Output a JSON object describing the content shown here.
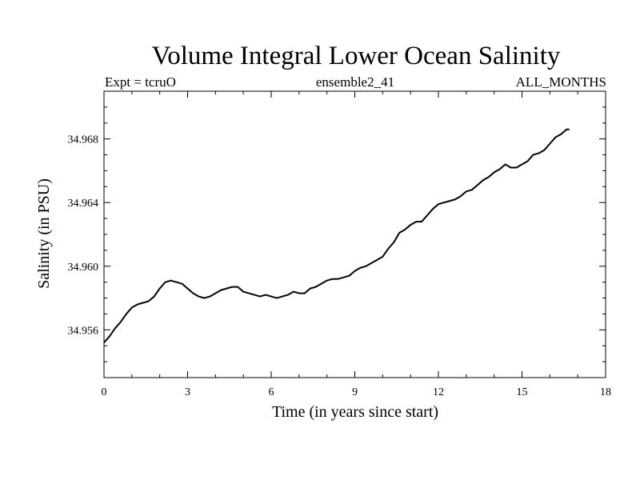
{
  "chart_data": {
    "type": "line",
    "title": "Volume Integral Lower Ocean Salinity",
    "subtitle_left": "Expt = tcruO",
    "subtitle_center": "ensemble2_41",
    "subtitle_right": "ALL_MONTHS",
    "xlabel": "Time (in years since start)",
    "ylabel": "Salinity (in PSU)",
    "xlim": [
      0,
      18
    ],
    "ylim": [
      34.953,
      34.971
    ],
    "xticks": [
      0,
      3,
      6,
      9,
      12,
      15,
      18
    ],
    "yticks": [
      34.956,
      34.96,
      34.964,
      34.968
    ],
    "ytick_labels": [
      "34.956",
      "34.960",
      "34.964",
      "34.968"
    ],
    "grid": false,
    "series": [
      {
        "color": "#000000",
        "x": [
          0,
          0.2,
          0.4,
          0.6,
          0.8,
          1.0,
          1.2,
          1.4,
          1.6,
          1.8,
          2.0,
          2.2,
          2.4,
          2.6,
          2.8,
          3.0,
          3.2,
          3.4,
          3.6,
          3.8,
          4.0,
          4.2,
          4.4,
          4.6,
          4.8,
          5.0,
          5.2,
          5.4,
          5.6,
          5.8,
          6.0,
          6.2,
          6.4,
          6.6,
          6.8,
          7.0,
          7.2,
          7.4,
          7.6,
          7.8,
          8.0,
          8.2,
          8.4,
          8.6,
          8.8,
          9.0,
          9.2,
          9.4,
          9.6,
          9.8,
          10.0,
          10.2,
          10.4,
          10.6,
          10.8,
          11.0,
          11.2,
          11.4,
          11.6,
          11.8,
          12.0,
          12.2,
          12.4,
          12.6,
          12.8,
          13.0,
          13.2,
          13.4,
          13.6,
          13.8,
          14.0,
          14.2,
          14.4,
          14.6,
          14.8,
          15.0,
          15.2,
          15.4,
          15.6,
          15.8,
          16.0,
          16.2,
          16.4,
          16.6,
          16.7
        ],
        "values": [
          34.9552,
          34.9556,
          34.9561,
          34.9565,
          34.957,
          34.9574,
          34.9576,
          34.9577,
          34.9578,
          34.9581,
          34.9586,
          34.959,
          34.9591,
          34.959,
          34.9589,
          34.9586,
          34.9583,
          34.9581,
          34.958,
          34.9581,
          34.9583,
          34.9585,
          34.9586,
          34.9587,
          34.9587,
          34.9584,
          34.9583,
          34.9582,
          34.9581,
          34.9582,
          34.9581,
          34.958,
          34.9581,
          34.9582,
          34.9584,
          34.9583,
          34.9583,
          34.9586,
          34.9587,
          34.9589,
          34.9591,
          34.9592,
          34.9592,
          34.9593,
          34.9594,
          34.9597,
          34.9599,
          34.96,
          34.9602,
          34.9604,
          34.9606,
          34.9611,
          34.9615,
          34.9621,
          34.9623,
          34.9626,
          34.9628,
          34.9628,
          34.9632,
          34.9636,
          34.9639,
          34.964,
          34.9641,
          34.9642,
          34.9644,
          34.9647,
          34.9648,
          34.9651,
          34.9654,
          34.9656,
          34.9659,
          34.9661,
          34.9664,
          34.9662,
          34.9662,
          34.9664,
          34.9666,
          34.967,
          34.9671,
          34.9673,
          34.9677,
          34.9681,
          34.9683,
          34.9686,
          34.9686
        ]
      }
    ]
  }
}
